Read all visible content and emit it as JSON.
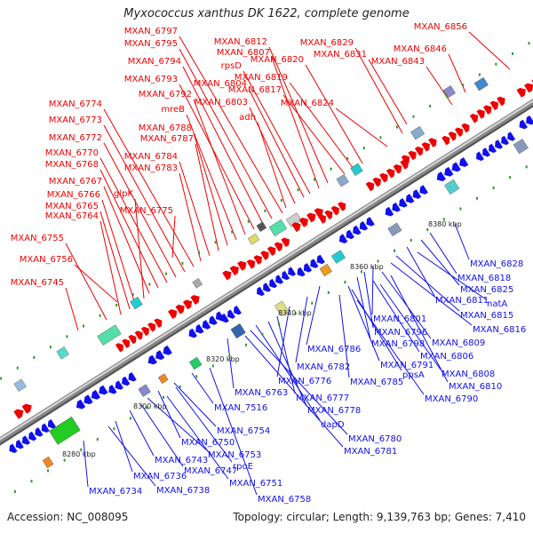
{
  "title": "Myxococcus xanthus DK 1622, complete genome",
  "footer": {
    "accession": "Accession: NC_008095",
    "summary": "Topology: circular; Length: 9,139,763 bp; Genes: 7,410"
  },
  "colors": {
    "forward": "#ee0000",
    "reverse": "#1010ee",
    "backbone": "#888888",
    "tick": "#2a9a2a",
    "scale_text": "#222222"
  },
  "scale_labels": [
    "8280 kbp",
    "8300 kbp",
    "8320 kbp",
    "8340 kbp",
    "8360 kbp",
    "8380 kbp"
  ],
  "forward_labels": [
    "MXAN_6856",
    "MXAN_6846",
    "MXAN_6843",
    "MXAN_6831",
    "MXAN_6829",
    "MXAN_6824",
    "MXAN_6820",
    "MXAN_6819",
    "MXAN_6817",
    "MXAN_6812",
    "MXAN_6807",
    "rpsD",
    "MXAN_6804",
    "MXAN_6803",
    "adh",
    "MXAN_6797",
    "MXAN_6795",
    "MXAN_6794",
    "MXAN_6793",
    "MXAN_6792",
    "mreB",
    "MXAN_6788",
    "MXAN_6787",
    "MXAN_6784",
    "MXAN_6783",
    "MXAN_6774",
    "MXAN_6773",
    "MXAN_6772",
    "MXAN_6770",
    "MXAN_6768",
    "MXAN_6767",
    "glpK",
    "MXAN_6766",
    "MXAN_6765",
    "MXAN_6775",
    "MXAN_6764",
    "MXAN_6755",
    "MXAN_6756",
    "MXAN_6745"
  ],
  "reverse_labels": [
    "MXAN_6828",
    "MXAN_6818",
    "MXAN_6825",
    "MXAN_6811",
    "natA",
    "MXAN_6815",
    "MXAN_6801",
    "MXAN_6816",
    "MXAN_6796",
    "MXAN_6798",
    "MXAN_6809",
    "MXAN_6786",
    "MXAN_6806",
    "MXAN_6791",
    "MXAN_6782",
    "MXAN_6808",
    "ppsA",
    "MXAN_6776",
    "MXAN_6785",
    "MXAN_6810",
    "MXAN_6763",
    "MXAN_6777",
    "MXAN_6790",
    "MXAN_7516",
    "MXAN_6778",
    "dapD",
    "MXAN_6754",
    "MXAN_6780",
    "MXAN_6750",
    "MXAN_6781",
    "MXAN_6753",
    "MXAN_6743",
    "MXAN_6747",
    "rpoE",
    "MXAN_6736",
    "MXAN_6751",
    "MXAN_6738",
    "MXAN_6734",
    "MXAN_6758"
  ]
}
